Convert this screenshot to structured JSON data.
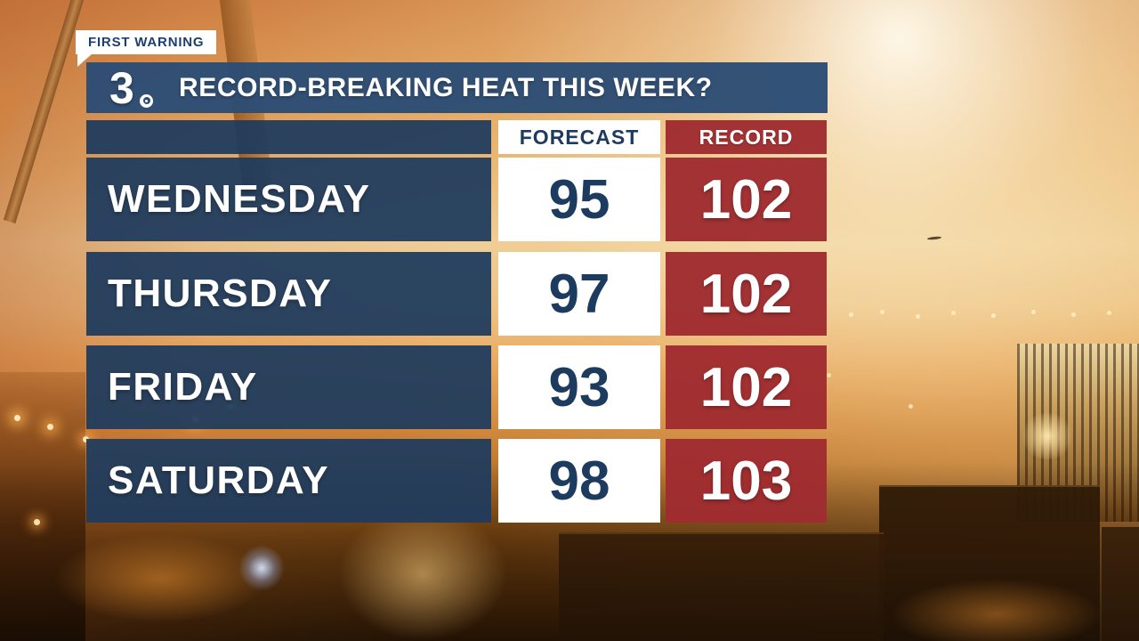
{
  "branding": {
    "badge_label": "FIRST WARNING",
    "channel_number": "3",
    "channel_icon": "cbs-eye"
  },
  "header": {
    "title": "RECORD-BREAKING HEAT THIS WEEK?"
  },
  "chart_data": {
    "type": "table",
    "title": "RECORD-BREAKING HEAT THIS WEEK?",
    "columns": [
      "",
      "FORECAST",
      "RECORD"
    ],
    "rows": [
      {
        "day": "WEDNESDAY",
        "forecast": "95",
        "record": "102"
      },
      {
        "day": "THURSDAY",
        "forecast": "97",
        "record": "102"
      },
      {
        "day": "FRIDAY",
        "forecast": "93",
        "record": "102"
      },
      {
        "day": "SATURDAY",
        "forecast": "98",
        "record": "103"
      }
    ]
  },
  "colors": {
    "panel_blue": "#2c4d75",
    "row_blue": "#1f3b5d",
    "record_red": "#a02c31",
    "forecast_text_blue": "#1d3a5f",
    "background_orange": "#d88f44",
    "white": "#ffffff"
  }
}
